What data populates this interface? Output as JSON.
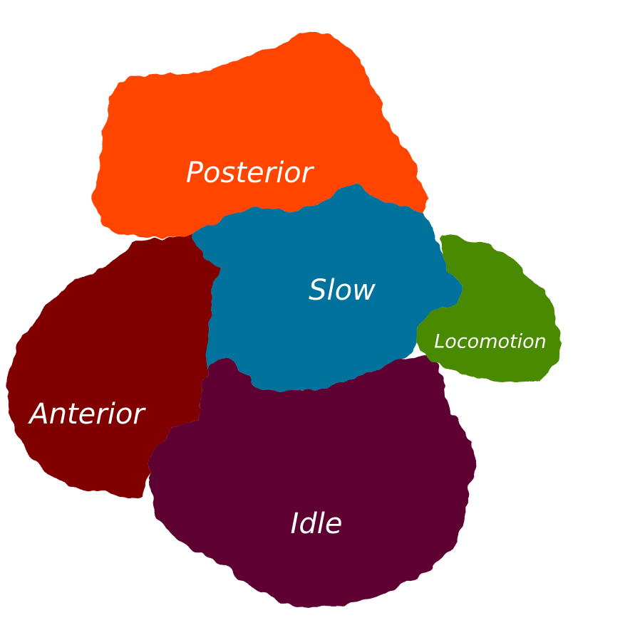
{
  "regions": {
    "posterior": {
      "label": "Posterior",
      "color": "#ff4500"
    },
    "slow": {
      "label": "Slow",
      "color": "#00729c"
    },
    "locomotion": {
      "label": "Locomotion",
      "color": "#4a8a00"
    },
    "anterior": {
      "label": "Anterior",
      "color": "#800000"
    },
    "idle": {
      "label": "Idle",
      "color": "#5e0030"
    }
  },
  "background_color": "#ffffff"
}
